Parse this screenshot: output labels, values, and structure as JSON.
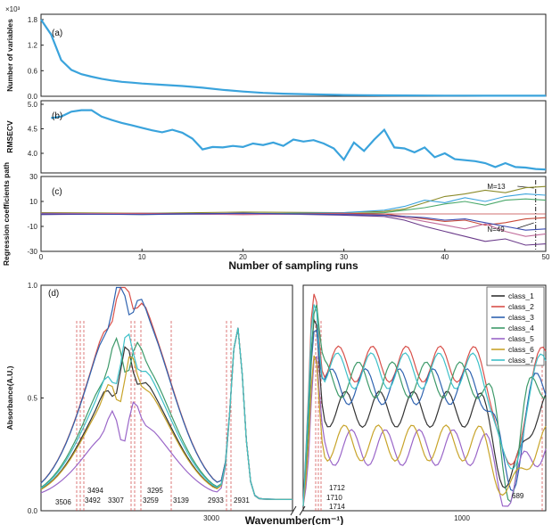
{
  "chart_data": [
    {
      "panel": "(a)",
      "type": "line",
      "ylabel": "Number of variables",
      "y_multiplier": "×10³",
      "yticks": [
        "0.0",
        "0.6",
        "1.2",
        "1.8"
      ],
      "ylim": [
        0,
        1.8
      ],
      "xlim": [
        0,
        50
      ],
      "color": "#3aa3dc",
      "x": [
        0,
        1,
        2,
        3,
        4,
        5,
        6,
        7,
        8,
        9,
        10,
        12,
        14,
        16,
        18,
        20,
        22,
        24,
        26,
        28,
        30,
        32,
        34,
        36,
        38,
        40,
        42,
        44,
        46,
        48,
        50
      ],
      "y": [
        1.8,
        1.45,
        0.85,
        0.62,
        0.52,
        0.46,
        0.41,
        0.37,
        0.34,
        0.32,
        0.3,
        0.27,
        0.24,
        0.2,
        0.15,
        0.11,
        0.08,
        0.06,
        0.05,
        0.04,
        0.03,
        0.025,
        0.02,
        0.018,
        0.016,
        0.015,
        0.014,
        0.013,
        0.013,
        0.013,
        0.013
      ]
    },
    {
      "panel": "(b)",
      "type": "line",
      "ylabel": "RMSECV",
      "yticks": [
        "4.0",
        "4.5",
        "5.0"
      ],
      "ylim": [
        3.6,
        5.0
      ],
      "xlim": [
        0,
        50
      ],
      "color": "#3aa3dc",
      "x": [
        1,
        2,
        3,
        4,
        5,
        6,
        7,
        8,
        9,
        10,
        11,
        12,
        13,
        14,
        15,
        16,
        17,
        18,
        19,
        20,
        21,
        22,
        23,
        24,
        25,
        26,
        27,
        28,
        29,
        30,
        31,
        32,
        33,
        34,
        35,
        36,
        37,
        38,
        39,
        40,
        41,
        42,
        43,
        44,
        45,
        46,
        47,
        48,
        49,
        50
      ],
      "y": [
        4.72,
        4.75,
        4.85,
        4.88,
        4.88,
        4.75,
        4.68,
        4.62,
        4.57,
        4.52,
        4.47,
        4.43,
        4.48,
        4.42,
        4.3,
        4.08,
        4.13,
        4.12,
        4.15,
        4.13,
        4.2,
        4.17,
        4.22,
        4.15,
        4.28,
        4.24,
        4.27,
        4.2,
        4.1,
        3.87,
        4.22,
        4.05,
        4.28,
        4.48,
        4.12,
        4.1,
        4.02,
        4.12,
        3.92,
        4.0,
        3.88,
        3.86,
        3.84,
        3.8,
        3.72,
        3.8,
        3.72,
        3.71,
        3.68,
        3.67
      ]
    },
    {
      "panel": "(c)",
      "type": "line",
      "ylabel": "Regression coefficients path",
      "xlabel": "Number of sampling runs",
      "xticks": [
        "0",
        "10",
        "20",
        "30",
        "40",
        "50"
      ],
      "yticks": [
        "-30",
        "-10",
        "10",
        "30"
      ],
      "ylim": [
        -30,
        30
      ],
      "xlim": [
        0,
        50
      ],
      "annotations": [
        "M=13",
        "N=49"
      ],
      "series": [
        {
          "color": "#8b8b2a",
          "x": [
            0,
            10,
            20,
            30,
            34,
            36,
            38,
            40,
            42,
            44,
            46,
            48,
            50
          ],
          "y": [
            1,
            0.5,
            1.5,
            1,
            2,
            4,
            9,
            14,
            16,
            19,
            17,
            21,
            22
          ]
        },
        {
          "color": "#3aa3dc",
          "x": [
            0,
            10,
            20,
            30,
            34,
            36,
            38,
            40,
            42,
            44,
            46,
            48,
            50
          ],
          "y": [
            -0.5,
            0.5,
            0,
            1,
            3,
            6,
            11,
            9,
            13,
            10,
            14,
            16,
            15
          ]
        },
        {
          "color": "#4aa86a",
          "x": [
            0,
            10,
            20,
            30,
            34,
            36,
            38,
            40,
            42,
            44,
            46,
            48,
            50
          ],
          "y": [
            0.5,
            -0.5,
            0.5,
            0,
            1,
            3,
            5,
            8,
            10,
            7,
            11,
            12,
            11
          ]
        },
        {
          "color": "#c84a3a",
          "x": [
            0,
            10,
            20,
            30,
            34,
            36,
            38,
            40,
            42,
            44,
            46,
            48,
            50
          ],
          "y": [
            0,
            0.5,
            -0.5,
            0.5,
            0,
            -2,
            -4,
            -6,
            -5,
            -9,
            -7,
            -4,
            -3
          ]
        },
        {
          "color": "#6a3a8a",
          "x": [
            0,
            10,
            20,
            30,
            34,
            36,
            38,
            40,
            42,
            44,
            46,
            48,
            50
          ],
          "y": [
            -0.5,
            0,
            0.5,
            -1,
            -2,
            -5,
            -10,
            -14,
            -18,
            -22,
            -20,
            -25,
            -24
          ]
        },
        {
          "color": "#c06a9a",
          "x": [
            0,
            10,
            20,
            30,
            34,
            36,
            38,
            40,
            42,
            44,
            46,
            48,
            50
          ],
          "y": [
            0.5,
            0,
            -0.5,
            0,
            -1,
            -3,
            -6,
            -9,
            -12,
            -8,
            -14,
            -18,
            -16
          ]
        },
        {
          "color": "#3a4ab0",
          "x": [
            0,
            10,
            20,
            30,
            34,
            36,
            38,
            40,
            42,
            44,
            46,
            48,
            50
          ],
          "y": [
            0,
            -0.5,
            0.5,
            -0.5,
            -1,
            -2,
            -3,
            -5,
            -4,
            -7,
            -10,
            -13,
            -12
          ]
        }
      ]
    },
    {
      "panel": "(d)",
      "type": "line",
      "ylabel": "Absorbance(A.U.)",
      "xlabel": "Wavenumber(cm⁻¹)",
      "ylim": [
        0,
        1.0
      ],
      "yticks": [
        "0.0",
        "0.5",
        "1.0"
      ],
      "left_xticks": [
        "3000"
      ],
      "right_xticks": [
        "1000"
      ],
      "legend": [
        "class_1",
        "class_2",
        "class_3",
        "class_4",
        "class_5",
        "class_6",
        "class_7"
      ],
      "colors": [
        "#333333",
        "#d8504a",
        "#2f63b0",
        "#3e9a6a",
        "#9a66c8",
        "#c8a42a",
        "#3ec0c8"
      ],
      "left_annotations": [
        "3506",
        "3494",
        "3492",
        "3307",
        "3295",
        "3259",
        "3139",
        "2933",
        "2931"
      ],
      "right_annotations": [
        "1712",
        "1710",
        "1714",
        "689"
      ]
    }
  ]
}
